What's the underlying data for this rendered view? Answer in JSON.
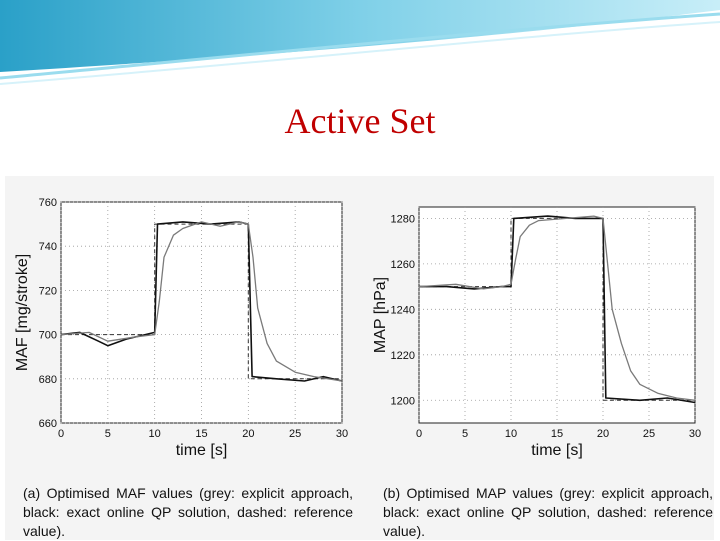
{
  "slide": {
    "title": "Active Set"
  },
  "captions": {
    "a": "(a) Optimised MAF values (grey: explicit approach, black: exact online QP solution, dashed: reference value).",
    "b": "(b) Optimised MAP values (grey: explicit approach, black: exact online QP solution, dashed: reference value)."
  },
  "colors": {
    "title": "#c00000",
    "grey_series": "#7a7a7a",
    "black_series": "#111111",
    "banner": "#4fb8d8"
  },
  "chart_data": [
    {
      "type": "line",
      "title": "",
      "xlabel": "time [s]",
      "ylabel": "MAF [mg/stroke]",
      "xlim": [
        0,
        30
      ],
      "ylim": [
        660,
        760
      ],
      "xticks": [
        "0",
        "5",
        "10",
        "15",
        "20",
        "25",
        "30"
      ],
      "yticks": [
        "660",
        "680",
        "700",
        "720",
        "740",
        "760"
      ],
      "grid": true,
      "series": [
        {
          "name": "reference value",
          "style": "dashed",
          "points": [
            [
              0,
              700
            ],
            [
              10,
              700
            ],
            [
              10,
              750
            ],
            [
              20,
              750
            ],
            [
              20,
              680
            ],
            [
              30,
              680
            ]
          ]
        },
        {
          "name": "exact online QP solution",
          "style": "black",
          "points": [
            [
              0,
              700
            ],
            [
              2,
              701
            ],
            [
              4,
              697
            ],
            [
              5,
              695
            ],
            [
              7,
              698
            ],
            [
              9,
              700
            ],
            [
              10,
              701
            ],
            [
              10.3,
              750
            ],
            [
              13,
              751
            ],
            [
              16,
              750
            ],
            [
              19,
              751
            ],
            [
              20,
              750
            ],
            [
              20.4,
              681
            ],
            [
              23,
              680
            ],
            [
              26,
              679
            ],
            [
              28,
              681
            ],
            [
              30,
              679
            ]
          ]
        },
        {
          "name": "explicit approach",
          "style": "grey",
          "points": [
            [
              0,
              700
            ],
            [
              3,
              701
            ],
            [
              5,
              697
            ],
            [
              8,
              699
            ],
            [
              10,
              700
            ],
            [
              10.5,
              715
            ],
            [
              11,
              735
            ],
            [
              12,
              745
            ],
            [
              13,
              748
            ],
            [
              15,
              751
            ],
            [
              17,
              749
            ],
            [
              19,
              751
            ],
            [
              20,
              750
            ],
            [
              20.5,
              735
            ],
            [
              21,
              712
            ],
            [
              22,
              696
            ],
            [
              23,
              688
            ],
            [
              25,
              683
            ],
            [
              27,
              681
            ],
            [
              30,
              679
            ]
          ]
        }
      ]
    },
    {
      "type": "line",
      "title": "",
      "xlabel": "time [s]",
      "ylabel": "MAP [hPa]",
      "xlim": [
        0,
        30
      ],
      "ylim": [
        1190,
        1285
      ],
      "xticks": [
        "0",
        "5",
        "10",
        "15",
        "20",
        "25",
        "30"
      ],
      "yticks": [
        "1200",
        "1220",
        "1240",
        "1260",
        "1280"
      ],
      "grid": true,
      "series": [
        {
          "name": "reference value",
          "style": "dashed",
          "points": [
            [
              0,
              1250
            ],
            [
              10,
              1250
            ],
            [
              10,
              1280
            ],
            [
              20,
              1280
            ],
            [
              20,
              1200
            ],
            [
              30,
              1200
            ]
          ]
        },
        {
          "name": "exact online QP solution",
          "style": "black",
          "points": [
            [
              0,
              1250
            ],
            [
              3,
              1250
            ],
            [
              6,
              1249
            ],
            [
              9,
              1250
            ],
            [
              10,
              1250
            ],
            [
              10.3,
              1280
            ],
            [
              14,
              1281
            ],
            [
              17,
              1280
            ],
            [
              20,
              1280
            ],
            [
              20.3,
              1201
            ],
            [
              24,
              1200
            ],
            [
              27,
              1201
            ],
            [
              30,
              1199
            ]
          ]
        },
        {
          "name": "explicit approach",
          "style": "grey",
          "points": [
            [
              0,
              1250
            ],
            [
              4,
              1251
            ],
            [
              7,
              1249
            ],
            [
              9,
              1250
            ],
            [
              10,
              1251
            ],
            [
              10.5,
              1262
            ],
            [
              11,
              1272
            ],
            [
              12,
              1277
            ],
            [
              13,
              1279
            ],
            [
              16,
              1280
            ],
            [
              19,
              1281
            ],
            [
              20,
              1280
            ],
            [
              20.5,
              1260
            ],
            [
              21,
              1240
            ],
            [
              22,
              1225
            ],
            [
              23,
              1213
            ],
            [
              24,
              1207
            ],
            [
              26,
              1203
            ],
            [
              28,
              1201
            ],
            [
              30,
              1200
            ]
          ]
        }
      ]
    }
  ]
}
